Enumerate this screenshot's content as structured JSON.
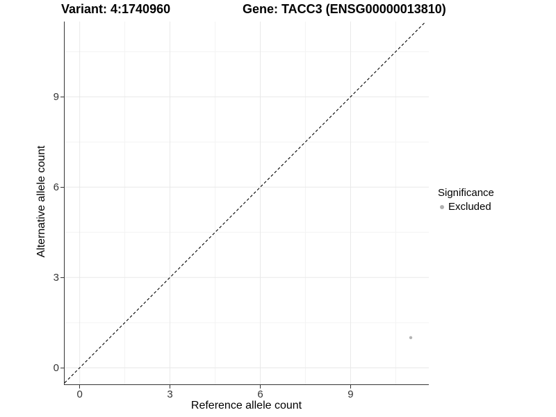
{
  "titles": {
    "variant": "Variant: 4:1740960",
    "gene": "Gene: TACC3 (ENSG00000013810)"
  },
  "chart_data": {
    "type": "scatter",
    "xlabel": "Reference allele count",
    "ylabel": "Alternative allele count",
    "xlim": [
      -0.5,
      11.6
    ],
    "ylim": [
      -0.55,
      11.5
    ],
    "x_ticks": [
      0,
      3,
      6,
      9
    ],
    "y_ticks": [
      0,
      3,
      6,
      9
    ],
    "x_minor_gridlines": [
      1.5,
      4.5,
      7.5,
      10.5
    ],
    "y_minor_gridlines": [
      1.5,
      4.5,
      7.5,
      10.5
    ],
    "grid": "major and minor, faint gray, white panel background",
    "abline": {
      "slope": 1,
      "intercept": 0,
      "style": "dashed",
      "color": "#000000"
    },
    "series": [
      {
        "name": "Excluded",
        "color": "#b4b4b4",
        "point_radius": 2.2,
        "points": [
          {
            "x": 11,
            "y": 1
          }
        ]
      }
    ],
    "legend": {
      "title": "Significance",
      "position": "right",
      "items": [
        {
          "label": "Excluded",
          "color": "#b0b0b0"
        }
      ]
    }
  },
  "colors": {
    "background": "#ffffff",
    "grid_major": "#e8e8e8",
    "grid_minor": "#f3f3f3",
    "axis_line": "#333333",
    "tick_label": "#333333",
    "title_text": "#000000",
    "excluded_point": "#b4b4b4"
  }
}
